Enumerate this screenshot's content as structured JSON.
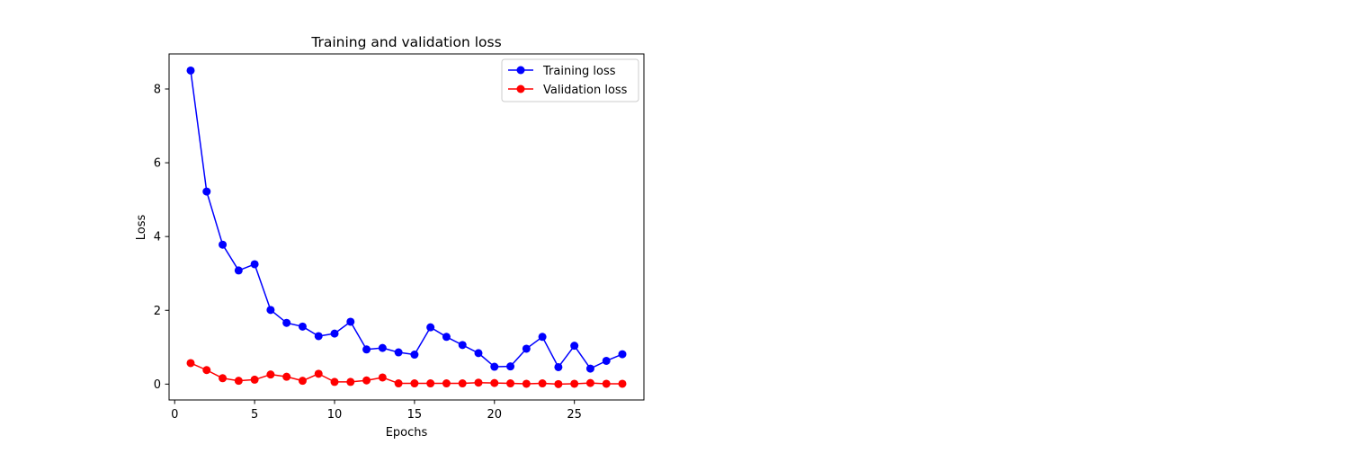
{
  "chart_data": {
    "type": "line",
    "title": "Training and validation loss",
    "xlabel": "Epochs",
    "ylabel": "Loss",
    "xlim": [
      -0.35,
      29.35
    ],
    "ylim": [
      -0.43,
      8.95
    ],
    "xticks": [
      0,
      5,
      10,
      15,
      20,
      25
    ],
    "yticks": [
      0,
      2,
      4,
      6,
      8
    ],
    "grid": false,
    "legend_position": "top-right",
    "x": [
      1,
      2,
      3,
      4,
      5,
      6,
      7,
      8,
      9,
      10,
      11,
      12,
      13,
      14,
      15,
      16,
      17,
      18,
      19,
      20,
      21,
      22,
      23,
      24,
      25,
      26,
      27,
      28
    ],
    "series": [
      {
        "name": "Training loss",
        "color": "#0000ff",
        "marker": "circle",
        "values": [
          8.5,
          5.22,
          3.78,
          3.08,
          3.25,
          2.01,
          1.66,
          1.56,
          1.3,
          1.37,
          1.69,
          0.94,
          0.98,
          0.86,
          0.8,
          1.54,
          1.28,
          1.06,
          0.84,
          0.47,
          0.48,
          0.96,
          1.28,
          0.46,
          1.04,
          0.42,
          0.63,
          0.81
        ]
      },
      {
        "name": "Validation loss",
        "color": "#ff0000",
        "marker": "circle",
        "values": [
          0.57,
          0.38,
          0.16,
          0.09,
          0.12,
          0.26,
          0.2,
          0.09,
          0.28,
          0.06,
          0.06,
          0.1,
          0.18,
          0.02,
          0.02,
          0.02,
          0.02,
          0.02,
          0.04,
          0.03,
          0.02,
          0.01,
          0.02,
          0.0,
          0.01,
          0.03,
          0.01,
          0.01
        ]
      }
    ]
  }
}
